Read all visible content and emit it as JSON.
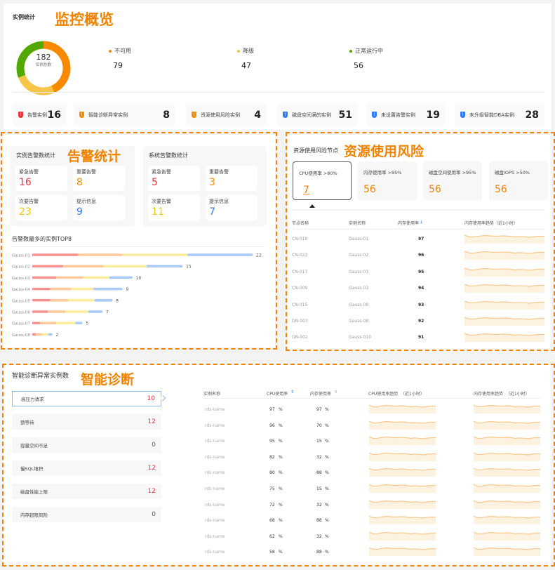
{
  "overview": {
    "section_title": "实例统计",
    "highlight": "监控概览",
    "total": "182",
    "total_label": "实例总数",
    "legend": [
      {
        "label": "不可用",
        "value": "79",
        "color": "#f98a00"
      },
      {
        "label": "降级",
        "value": "47",
        "color": "#f7c548"
      },
      {
        "label": "正常运行中",
        "value": "56",
        "color": "#52a800"
      }
    ],
    "stats": [
      {
        "label": "告警实例",
        "value": "16",
        "icon": "alert-icon",
        "color": "#e8343c"
      },
      {
        "label": "智能诊断异常实例",
        "value": "8",
        "icon": "shield-icon",
        "color": "#f98a00"
      },
      {
        "label": "资源使用风险实例",
        "value": "4",
        "icon": "shield-icon",
        "color": "#f98a00"
      },
      {
        "label": "磁盘空间满的实例",
        "value": "51",
        "icon": "shield-icon",
        "color": "#2f7cf6"
      },
      {
        "label": "未设置告警实例",
        "value": "19",
        "icon": "shield-icon",
        "color": "#2f7cf6"
      },
      {
        "label": "未升级智能DBA实例",
        "value": "28",
        "icon": "shield-icon",
        "color": "#2f7cf6"
      }
    ]
  },
  "alerts": {
    "highlight": "告警统计",
    "instance": {
      "title": "实例告警数统计",
      "tiles": [
        {
          "label": "紧急告警",
          "value": "16",
          "color": "#e8343c"
        },
        {
          "label": "重要告警",
          "value": "8",
          "color": "#f98a00"
        },
        {
          "label": "次要告警",
          "value": "23",
          "color": "#f5c800"
        },
        {
          "label": "提示信息",
          "value": "9",
          "color": "#2f7cf6"
        }
      ]
    },
    "system": {
      "title": "系统告警数统计",
      "tiles": [
        {
          "label": "紧急告警",
          "value": "5",
          "color": "#e8343c"
        },
        {
          "label": "重要告警",
          "value": "3",
          "color": "#f98a00"
        },
        {
          "label": "次要告警",
          "value": "11",
          "color": "#f5c800"
        },
        {
          "label": "提示信息",
          "value": "7",
          "color": "#2f7cf6"
        }
      ]
    },
    "chart_data": {
      "type": "bar",
      "title": "告警数最多的实例TOP8",
      "categories": [
        "Gauss-01",
        "Gauss-02",
        "Gauss-03",
        "Gauss-04",
        "Gauss-05",
        "Gauss-06",
        "Gauss-07",
        "Gauss-08"
      ],
      "values": [
        22,
        15,
        10,
        9,
        8,
        7,
        5,
        2
      ],
      "segment_colors": [
        "#f79090",
        "#fdc99a",
        "#fcec9e",
        "#a9c9f7"
      ],
      "segments": [
        [
          4.6,
          4.4,
          6.5,
          6.5
        ],
        [
          3.1,
          4,
          4.3,
          3.6
        ],
        [
          2.4,
          2.7,
          2.6,
          2.3
        ],
        [
          1.8,
          2.1,
          2.2,
          2.9
        ],
        [
          1.8,
          1.8,
          2.6,
          1.8
        ],
        [
          1.6,
          1.7,
          2.3,
          1.4
        ],
        [
          0.8,
          1.6,
          1.9,
          0.7
        ],
        [
          0.4,
          0.6,
          0.6,
          0.4
        ]
      ]
    }
  },
  "risk": {
    "title": "资源使用风险节点",
    "highlight": "资源使用风险",
    "cards": [
      {
        "label": "CPU使用率 >80%",
        "value": "7"
      },
      {
        "label": "内存使用率 >95%",
        "value": "56"
      },
      {
        "label": "磁盘空间使用率 >95%",
        "value": "56"
      },
      {
        "label": "磁盘IOPS >50%",
        "value": "56"
      }
    ],
    "columns": [
      "节点名称",
      "实例名称",
      "内存使用率",
      "内存使用率趋势（近1小时）"
    ],
    "rows": [
      [
        "CN-019",
        "Gauss-01",
        "97"
      ],
      [
        "CN-023",
        "Gauss-02",
        "96"
      ],
      [
        "CN-017",
        "Gauss-03",
        "95"
      ],
      [
        "CN-009",
        "Gauss-03",
        "94"
      ],
      [
        "CN-015",
        "Gauss-08",
        "93"
      ],
      [
        "DN-003",
        "Gauss-08",
        "92"
      ],
      [
        "DN-002",
        "Gauss-010",
        "91"
      ]
    ]
  },
  "diagnosis": {
    "title": "智能诊断异常实例数",
    "highlight": "智能诊断",
    "items": [
      {
        "label": "高压力请求",
        "value": "10",
        "color": "#e8343c"
      },
      {
        "label": "锁等待",
        "value": "12",
        "color": "#e8343c"
      },
      {
        "label": "容量空间不足",
        "value": "0",
        "color": "#555555"
      },
      {
        "label": "慢SQL堆积",
        "value": "12",
        "color": "#e8343c"
      },
      {
        "label": "磁盘性能上限",
        "value": "12",
        "color": "#e8343c"
      },
      {
        "label": "内存超限风险",
        "value": "0",
        "color": "#555555"
      }
    ],
    "columns": [
      "实例名称",
      "CPU使用率",
      "内存使用率",
      "CPU使用率趋势  （近1小时）",
      "内存使用率趋势  （近1小时）"
    ],
    "rows": [
      [
        "rds-name",
        "97",
        "97"
      ],
      [
        "rds-name",
        "96",
        "70"
      ],
      [
        "rds-name",
        "95",
        "15"
      ],
      [
        "rds-name",
        "82",
        "32"
      ],
      [
        "rds-name",
        "80",
        "88"
      ],
      [
        "rds-name",
        "75",
        "15"
      ],
      [
        "rds-name",
        "72",
        "32"
      ],
      [
        "rds-name",
        "68",
        "88"
      ],
      [
        "rds-name",
        "62",
        "32"
      ],
      [
        "rds-name",
        "58",
        "88"
      ]
    ],
    "unit": "%"
  }
}
